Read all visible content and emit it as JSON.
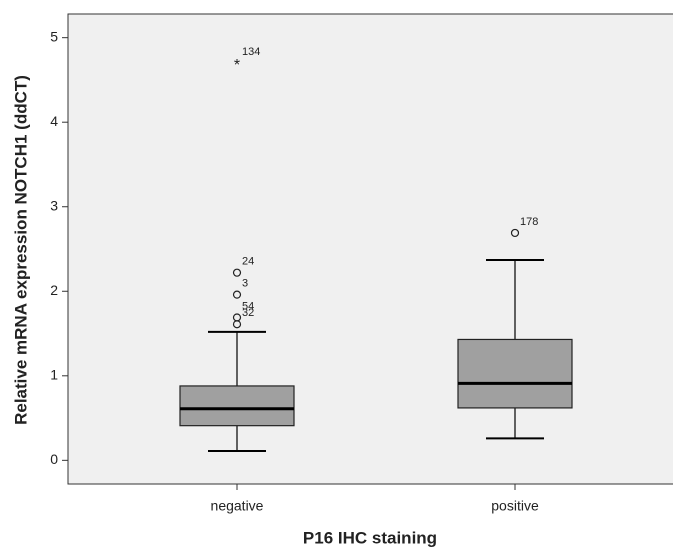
{
  "chart_data": {
    "type": "box",
    "x_label": "P16 IHC staining",
    "y_label": "Relative mRNA expression NOTCH1 (ddCT)",
    "categories": [
      "negative",
      "positive"
    ],
    "box_color": "#a0a0a0",
    "ylim": [
      -0.28,
      5.28
    ],
    "yticks": [
      0,
      1,
      2,
      3,
      4,
      5
    ],
    "boxes": [
      {
        "whislo": 0.11,
        "q1": 0.41,
        "med": 0.61,
        "q3": 0.88,
        "whishi": 1.52,
        "outliers": [
          {
            "value": 4.7,
            "case": "134",
            "extreme": true
          },
          {
            "value": 2.22,
            "case": "24",
            "extreme": false
          },
          {
            "value": 1.96,
            "case": "3",
            "extreme": false
          },
          {
            "value": 1.69,
            "case": "54",
            "extreme": false
          },
          {
            "value": 1.61,
            "case": "32",
            "extreme": false
          }
        ]
      },
      {
        "whislo": 0.26,
        "q1": 0.62,
        "med": 0.91,
        "q3": 1.43,
        "whishi": 2.37,
        "outliers": [
          {
            "value": 2.69,
            "case": "178",
            "extreme": false
          }
        ]
      }
    ]
  }
}
